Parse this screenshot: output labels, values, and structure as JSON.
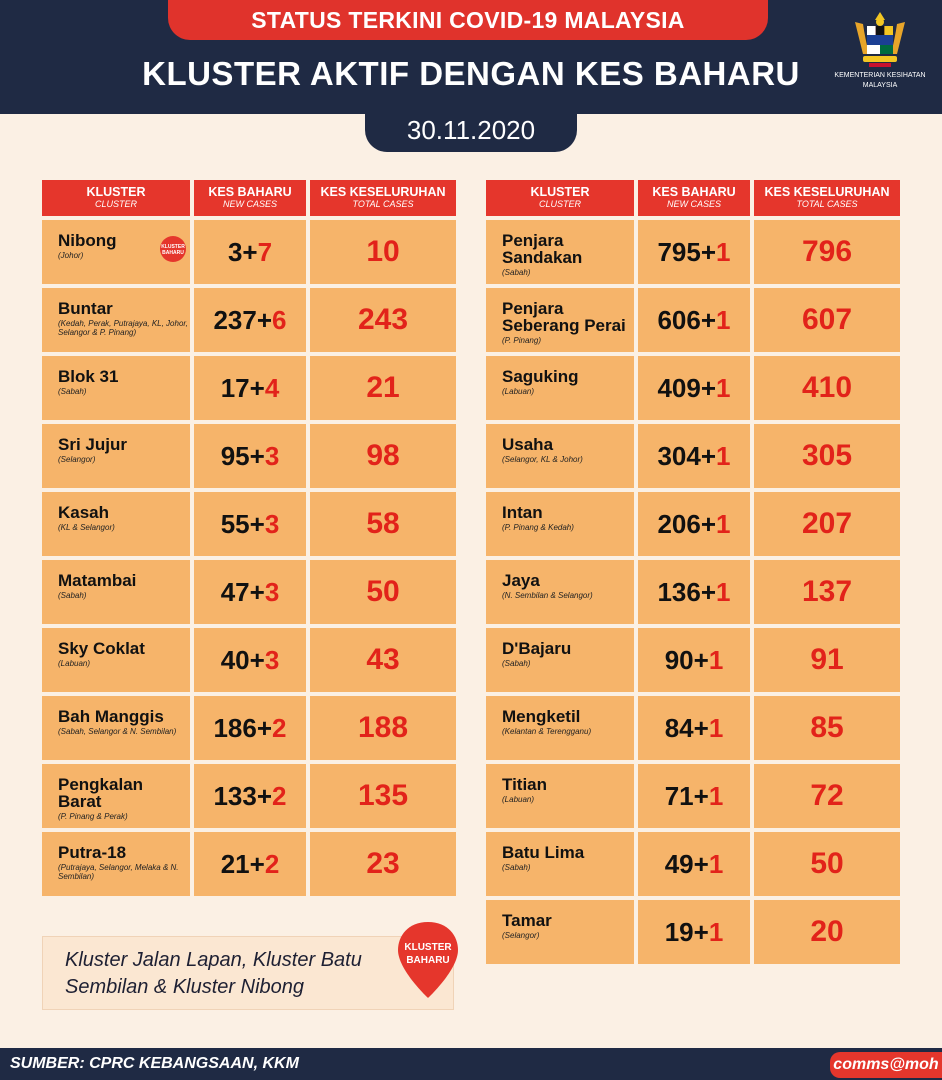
{
  "header": {
    "top_label": "STATUS TERKINI COVID-19 MALAYSIA",
    "title": "KLUSTER AKTIF DENGAN KES BAHARU",
    "date": "30.11.2020",
    "logo_text_1": "KEMENTERIAN KESIHATAN",
    "logo_text_2": "MALAYSIA"
  },
  "columns": {
    "cluster": "KLUSTER",
    "cluster_en": "CLUSTER",
    "new": "KES BAHARU",
    "new_en": "NEW CASES",
    "total": "KES KESELURUHAN",
    "total_en": "TOTAL CASES"
  },
  "badge_text_1": "KLUSTER",
  "badge_text_2": "BAHARU",
  "left_rows": [
    {
      "name": "Nibong",
      "loc": "(Johor)",
      "base": "3",
      "add": "7",
      "total": "10"
    },
    {
      "name": "Buntar",
      "loc": "(Kedah, Perak, Putrajaya, KL, Johor, Selangor & P. Pinang)",
      "base": "237",
      "add": "6",
      "total": "243"
    },
    {
      "name": "Blok 31",
      "loc": "(Sabah)",
      "base": "17",
      "add": "4",
      "total": "21"
    },
    {
      "name": "Sri Jujur",
      "loc": "(Selangor)",
      "base": "95",
      "add": "3",
      "total": "98"
    },
    {
      "name": "Kasah",
      "loc": "(KL & Selangor)",
      "base": "55",
      "add": "3",
      "total": "58"
    },
    {
      "name": "Matambai",
      "loc": "(Sabah)",
      "base": "47",
      "add": "3",
      "total": "50"
    },
    {
      "name": "Sky Coklat",
      "loc": "(Labuan)",
      "base": "40",
      "add": "3",
      "total": "43"
    },
    {
      "name": "Bah Manggis",
      "loc": "(Sabah, Selangor & N. Sembilan)",
      "base": "186",
      "add": "2",
      "total": "188"
    },
    {
      "name": "Pengkalan Barat",
      "loc": "(P. Pinang & Perak)",
      "base": "133",
      "add": "2",
      "total": "135"
    },
    {
      "name": "Putra-18",
      "loc": "(Putrajaya, Selangor, Melaka & N. Sembilan)",
      "base": "21",
      "add": "2",
      "total": "23"
    }
  ],
  "right_rows": [
    {
      "name": "Penjara Sandakan",
      "loc": "(Sabah)",
      "base": "795",
      "add": "1",
      "total": "796"
    },
    {
      "name": "Penjara Seberang Perai",
      "loc": "(P. Pinang)",
      "base": "606",
      "add": "1",
      "total": "607"
    },
    {
      "name": "Saguking",
      "loc": "(Labuan)",
      "base": "409",
      "add": "1",
      "total": "410"
    },
    {
      "name": "Usaha",
      "loc": "(Selangor, KL & Johor)",
      "base": "304",
      "add": "1",
      "total": "305"
    },
    {
      "name": "Intan",
      "loc": "(P. Pinang & Kedah)",
      "base": "206",
      "add": "1",
      "total": "207"
    },
    {
      "name": "Jaya",
      "loc": "(N. Sembilan & Selangor)",
      "base": "136",
      "add": "1",
      "total": "137"
    },
    {
      "name": "D'Bajaru",
      "loc": "(Sabah)",
      "base": "90",
      "add": "1",
      "total": "91"
    },
    {
      "name": "Mengketil",
      "loc": "(Kelantan & Terengganu)",
      "base": "84",
      "add": "1",
      "total": "85"
    },
    {
      "name": "Titian",
      "loc": "(Labuan)",
      "base": "71",
      "add": "1",
      "total": "72"
    },
    {
      "name": "Batu Lima",
      "loc": "(Sabah)",
      "base": "49",
      "add": "1",
      "total": "50"
    },
    {
      "name": "Tamar",
      "loc": "(Selangor)",
      "base": "19",
      "add": "1",
      "total": "20"
    }
  ],
  "note": "Kluster Jalan Lapan, Kluster Batu Sembilan & Kluster Nibong",
  "footer": {
    "source": "SUMBER: CPRC KEBANGSAAN, KKM",
    "handle": "comms@moh"
  }
}
